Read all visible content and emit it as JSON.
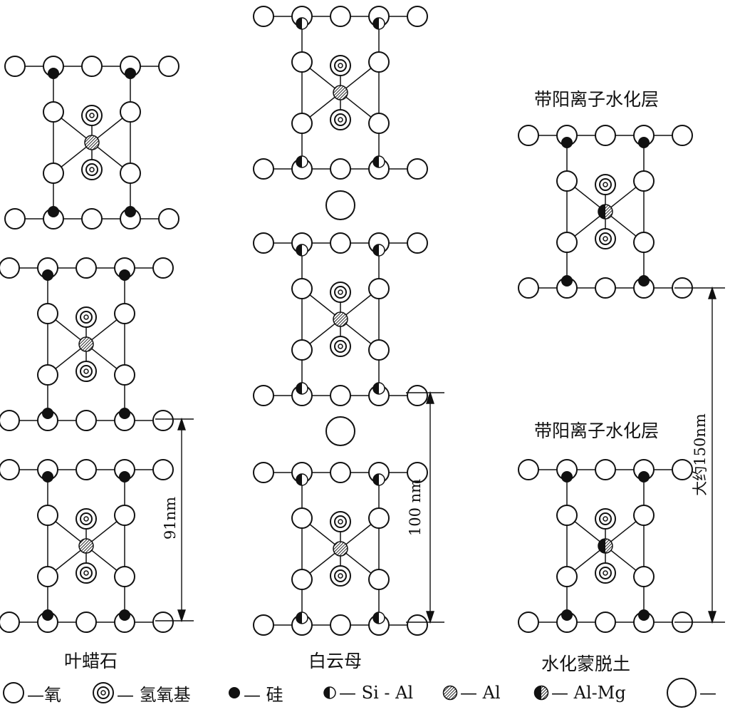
{
  "minerals": [
    {
      "name": "叶蜡石",
      "spacing_label": "91nm"
    },
    {
      "name": "白云母",
      "spacing_label": "100 nm"
    },
    {
      "name": "水化蒙脱土",
      "spacing_label": "大约150nm",
      "layer_label": "带阳离子水化层"
    }
  ],
  "legend": [
    {
      "symbol": "oxygen",
      "text": "—氧"
    },
    {
      "symbol": "hydroxyl",
      "text": "— 氢氧基"
    },
    {
      "symbol": "silicon",
      "text": "— 硅"
    },
    {
      "symbol": "si-al",
      "text": "— Si - Al"
    },
    {
      "symbol": "al",
      "text": "— Al"
    },
    {
      "symbol": "al-mg",
      "text": "— Al-Mg"
    },
    {
      "symbol": "cation",
      "text": "—"
    }
  ]
}
